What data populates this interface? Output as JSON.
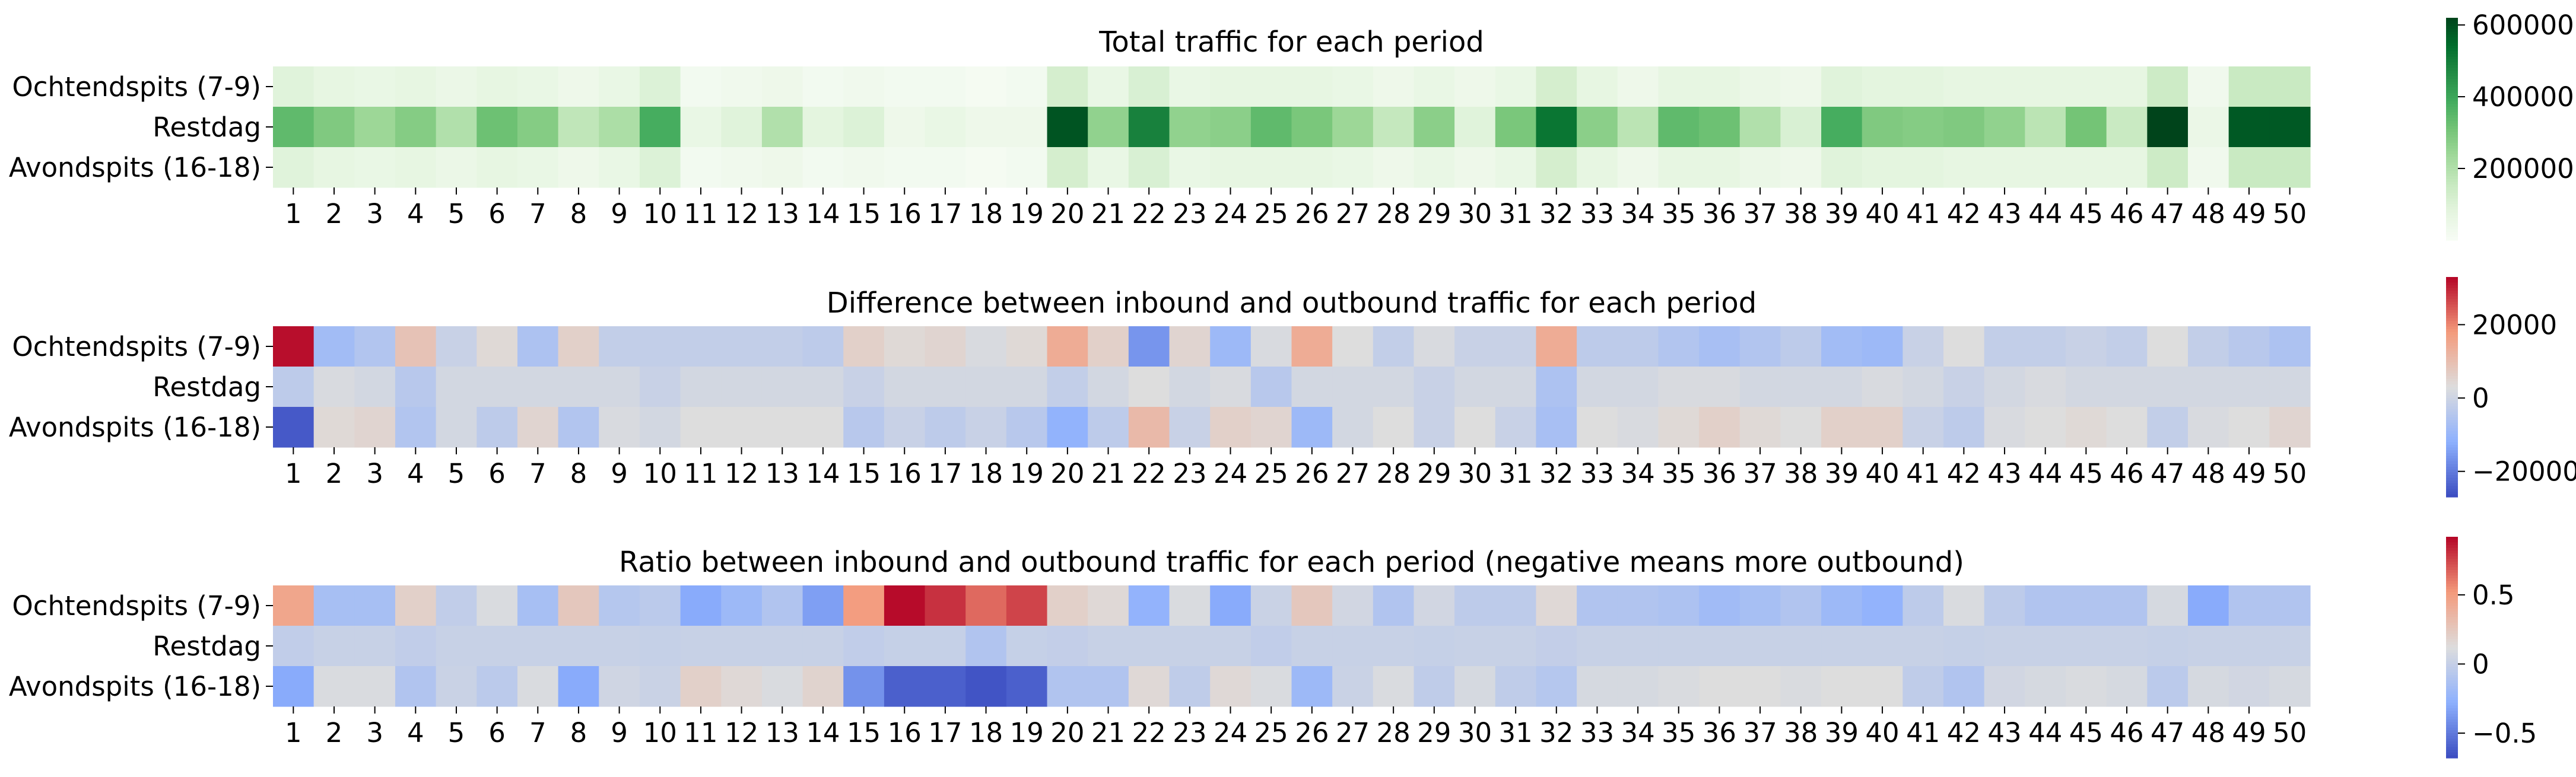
{
  "chart_data": [
    {
      "type": "heatmap",
      "title": "Total traffic for each period",
      "rows": [
        "Ochtendspits (7-9)",
        "Restdag",
        "Avondspits (16-18)"
      ],
      "columns": [
        "1",
        "2",
        "3",
        "4",
        "5",
        "6",
        "7",
        "8",
        "9",
        "10",
        "11",
        "12",
        "13",
        "14",
        "15",
        "16",
        "17",
        "18",
        "19",
        "20",
        "21",
        "22",
        "23",
        "24",
        "25",
        "26",
        "27",
        "28",
        "29",
        "30",
        "31",
        "32",
        "33",
        "34",
        "35",
        "36",
        "37",
        "38",
        "39",
        "40",
        "41",
        "42",
        "43",
        "44",
        "45",
        "46",
        "47",
        "48",
        "49",
        "50"
      ],
      "values": [
        [
          90000,
          70000,
          60000,
          70000,
          50000,
          70000,
          60000,
          40000,
          60000,
          100000,
          20000,
          30000,
          40000,
          20000,
          30000,
          20000,
          20000,
          10000,
          20000,
          120000,
          60000,
          110000,
          60000,
          70000,
          70000,
          70000,
          60000,
          40000,
          60000,
          40000,
          60000,
          120000,
          70000,
          40000,
          70000,
          70000,
          50000,
          40000,
          90000,
          80000,
          80000,
          70000,
          70000,
          70000,
          70000,
          70000,
          140000,
          30000,
          150000,
          150000
        ],
        [
          340000,
          290000,
          240000,
          280000,
          200000,
          320000,
          280000,
          170000,
          210000,
          380000,
          60000,
          90000,
          200000,
          80000,
          100000,
          40000,
          60000,
          40000,
          40000,
          590000,
          260000,
          490000,
          260000,
          270000,
          340000,
          300000,
          240000,
          160000,
          270000,
          90000,
          300000,
          520000,
          270000,
          180000,
          340000,
          320000,
          200000,
          110000,
          380000,
          290000,
          280000,
          290000,
          260000,
          180000,
          310000,
          150000,
          630000,
          50000,
          580000,
          580000
        ],
        [
          90000,
          70000,
          60000,
          70000,
          50000,
          70000,
          60000,
          40000,
          60000,
          100000,
          20000,
          30000,
          40000,
          20000,
          30000,
          20000,
          20000,
          10000,
          20000,
          120000,
          60000,
          110000,
          60000,
          70000,
          70000,
          70000,
          60000,
          40000,
          60000,
          40000,
          60000,
          120000,
          70000,
          40000,
          70000,
          70000,
          50000,
          40000,
          90000,
          80000,
          80000,
          70000,
          70000,
          70000,
          70000,
          70000,
          140000,
          30000,
          150000,
          150000
        ]
      ],
      "colorbar": {
        "colormap": "Greens",
        "range": [
          0,
          620000
        ],
        "ticks": [
          200000,
          400000,
          600000
        ]
      }
    },
    {
      "type": "heatmap",
      "title": "Difference between inbound and outbound traffic for each period",
      "rows": [
        "Ochtendspits (7-9)",
        "Restdag",
        "Avondspits (16-18)"
      ],
      "columns": [
        "1",
        "2",
        "3",
        "4",
        "5",
        "6",
        "7",
        "8",
        "9",
        "10",
        "11",
        "12",
        "13",
        "14",
        "15",
        "16",
        "17",
        "18",
        "19",
        "20",
        "21",
        "22",
        "23",
        "24",
        "25",
        "26",
        "27",
        "28",
        "29",
        "30",
        "31",
        "32",
        "33",
        "34",
        "35",
        "36",
        "37",
        "38",
        "39",
        "40",
        "41",
        "42",
        "43",
        "44",
        "45",
        "46",
        "47",
        "48",
        "49",
        "50"
      ],
      "values": [
        [
          32000,
          -8000,
          -5000,
          9000,
          -1000,
          4000,
          -6000,
          6000,
          -2000,
          -2000,
          -2000,
          -2000,
          -2000,
          -3000,
          6000,
          4000,
          5000,
          2000,
          4000,
          14000,
          6000,
          -16000,
          5000,
          -9000,
          2000,
          14000,
          3000,
          -2000,
          2000,
          -1000,
          -1000,
          14000,
          -3000,
          -3000,
          -5000,
          -7000,
          -5000,
          -3000,
          -8000,
          -9000,
          -1000,
          3000,
          -2000,
          -2000,
          -1000,
          -2000,
          3000,
          -2000,
          -4000,
          -6000
        ],
        [
          -3000,
          2000,
          1000,
          -4000,
          1000,
          1000,
          1000,
          1000,
          1000,
          -1000,
          1000,
          1000,
          1000,
          1000,
          -1000,
          1000,
          1000,
          1000,
          1000,
          -2000,
          1000,
          3000,
          1000,
          2000,
          -4000,
          1000,
          1000,
          1000,
          -1000,
          1000,
          1000,
          -6000,
          1000,
          1000,
          2000,
          2000,
          1000,
          1000,
          1000,
          2000,
          1000,
          -1000,
          1000,
          2000,
          1000,
          1000,
          1000,
          1000,
          1000,
          1000
        ],
        [
          -25000,
          4000,
          5000,
          -5000,
          1000,
          -3000,
          5000,
          -5000,
          2000,
          1000,
          3000,
          3000,
          3000,
          3000,
          -4000,
          -1000,
          -3000,
          -1000,
          -4000,
          -11000,
          -3000,
          11000,
          -1000,
          6000,
          5000,
          -9000,
          1000,
          3000,
          -1000,
          3000,
          -1000,
          -7000,
          3000,
          2000,
          4000,
          6000,
          4000,
          3000,
          6000,
          6000,
          -1000,
          -3000,
          2000,
          3000,
          4000,
          3000,
          -2000,
          2000,
          3000,
          5000
        ]
      ],
      "colorbar": {
        "colormap": "coolwarm",
        "range": [
          -27000,
          33000
        ],
        "ticks": [
          -20000,
          0,
          20000
        ]
      }
    },
    {
      "type": "heatmap",
      "title": "Ratio between inbound and outbound traffic for each period (negative means more outbound)",
      "rows": [
        "Ochtendspits (7-9)",
        "Restdag",
        "Avondspits (16-18)"
      ],
      "columns": [
        "1",
        "2",
        "3",
        "4",
        "5",
        "6",
        "7",
        "8",
        "9",
        "10",
        "11",
        "12",
        "13",
        "14",
        "15",
        "16",
        "17",
        "18",
        "19",
        "20",
        "21",
        "22",
        "23",
        "24",
        "25",
        "26",
        "27",
        "28",
        "29",
        "30",
        "31",
        "32",
        "33",
        "34",
        "35",
        "36",
        "37",
        "38",
        "39",
        "40",
        "41",
        "42",
        "43",
        "44",
        "45",
        "46",
        "47",
        "48",
        "49",
        "50"
      ],
      "values": [
        [
          0.45,
          -0.15,
          -0.15,
          0.2,
          -0.02,
          0.1,
          -0.15,
          0.25,
          -0.08,
          -0.05,
          -0.3,
          -0.2,
          -0.1,
          -0.35,
          0.5,
          0.9,
          0.8,
          0.65,
          0.75,
          0.2,
          0.15,
          -0.25,
          0.1,
          -0.3,
          0.02,
          0.25,
          0.06,
          -0.1,
          0.06,
          -0.04,
          -0.04,
          0.15,
          -0.1,
          -0.1,
          -0.12,
          -0.18,
          -0.15,
          -0.1,
          -0.2,
          -0.25,
          -0.04,
          0.1,
          -0.04,
          -0.1,
          -0.1,
          -0.1,
          0.08,
          -0.3,
          -0.1,
          -0.1
        ],
        [
          -0.02,
          0.01,
          0.01,
          -0.02,
          0.01,
          0.01,
          0.01,
          0.01,
          0.01,
          0,
          0.01,
          0.01,
          0.01,
          0.01,
          -0.02,
          0,
          0,
          -0.1,
          0,
          -0.01,
          0.01,
          0.01,
          0.01,
          0.01,
          -0.02,
          0.01,
          0.01,
          0.01,
          0,
          0.01,
          0.01,
          -0.01,
          0.01,
          0.01,
          0.01,
          0.01,
          0.01,
          0.01,
          0.01,
          0.01,
          0.01,
          0,
          0.01,
          0.01,
          0.01,
          0.01,
          0,
          0.01,
          0.01,
          0.01
        ],
        [
          -0.3,
          0.1,
          0.1,
          -0.1,
          0.02,
          -0.05,
          0.1,
          -0.3,
          0.05,
          0.02,
          0.2,
          0.15,
          0.1,
          0.18,
          -0.4,
          -0.6,
          -0.6,
          -0.65,
          -0.6,
          -0.1,
          -0.1,
          0.15,
          -0.03,
          0.15,
          0.1,
          -0.2,
          0.02,
          0.1,
          -0.03,
          0.08,
          -0.03,
          -0.08,
          0.08,
          0.08,
          0.1,
          0.12,
          0.12,
          0.1,
          0.12,
          0.12,
          -0.03,
          -0.1,
          0.06,
          0.08,
          0.1,
          0.08,
          -0.05,
          0.08,
          0.06,
          0.08
        ]
      ],
      "colorbar": {
        "colormap": "coolwarm",
        "range": [
          -0.68,
          0.92
        ],
        "ticks": [
          -0.5,
          0.0,
          0.5
        ]
      }
    }
  ]
}
